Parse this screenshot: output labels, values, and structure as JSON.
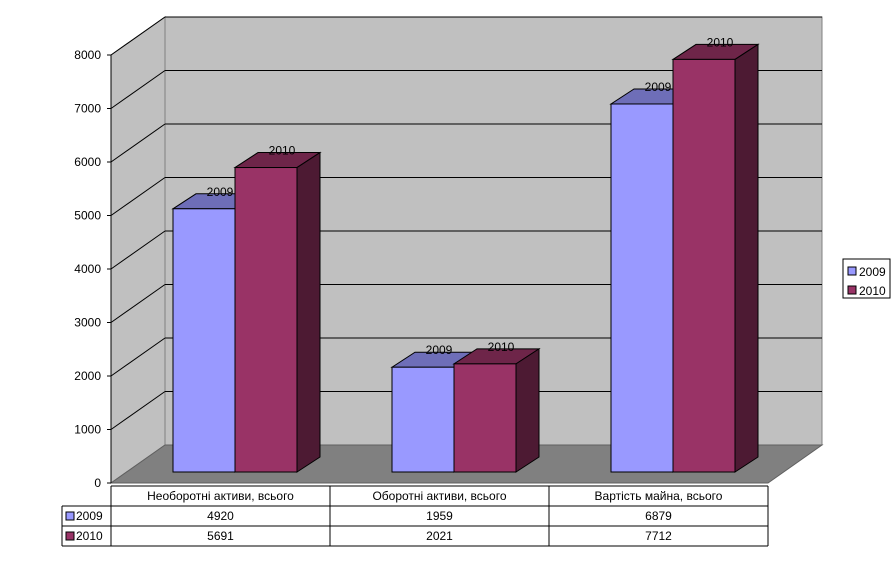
{
  "chart_data": {
    "type": "bar",
    "three_d": true,
    "categories": [
      "Необоротні активи, всього",
      "Оборотні активи, всього",
      "Вартість майна, всього"
    ],
    "series": [
      {
        "name": "2009",
        "values": [
          4920,
          1959,
          6879
        ],
        "color": "#9999ff"
      },
      {
        "name": "2010",
        "values": [
          5691,
          2021,
          7712
        ],
        "color": "#993366"
      }
    ],
    "ylim": [
      0,
      8000
    ],
    "ytick_step": 1000,
    "y_tick_labels": [
      "0",
      "1000",
      "2000",
      "3000",
      "4000",
      "5000",
      "6000",
      "7000",
      "8000"
    ],
    "grid": true,
    "legend_position": "right",
    "data_table": true,
    "bar_labels_show": "series_name",
    "title": "",
    "xlabel": "",
    "ylabel": "",
    "colors": {
      "back_wall": "#c0c0c0",
      "side_wall": "#c0c0c0",
      "floor": "#808080",
      "grid": "#000000"
    }
  }
}
